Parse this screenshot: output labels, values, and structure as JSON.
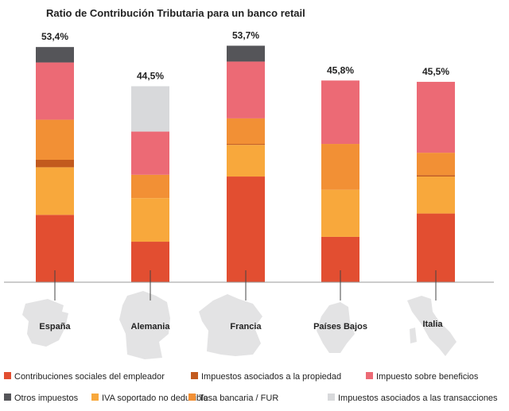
{
  "chart_data": {
    "type": "bar",
    "stacked": true,
    "title": "Ratio de Contribución Tributaria para un banco retail",
    "categories": [
      "España",
      "Alemania",
      "Francia",
      "Países Bajos",
      "Italia"
    ],
    "totals": [
      "53,4%",
      "44,5%",
      "53,7%",
      "45,8%",
      "45,5%"
    ],
    "ylim": [
      0,
      55
    ],
    "grid": false,
    "legend_placement": "bottom",
    "series": [
      {
        "name": "Contribuciones sociales del empleador",
        "color": "#e24e31",
        "values": [
          15.3,
          9.2,
          24.0,
          10.3,
          15.6
        ]
      },
      {
        "name": "IVA soportado no deducible",
        "color": "#f8a83c",
        "values": [
          10.8,
          9.9,
          7.2,
          10.7,
          8.4
        ]
      },
      {
        "name": "Impuestos asociados a la propiedad",
        "color": "#c25a1e",
        "values": [
          1.7,
          0,
          0.2,
          0,
          0.3
        ]
      },
      {
        "name": "Tasa bancaria / FUR",
        "color": "#f29035",
        "values": [
          9.1,
          5.3,
          5.8,
          10.4,
          5.1
        ]
      },
      {
        "name": "Impuesto sobre beneficios",
        "color": "#ec6a75",
        "values": [
          13.0,
          9.8,
          12.9,
          14.4,
          16.1
        ]
      },
      {
        "name": "Otros impuestos",
        "color": "#555559",
        "values": [
          3.5,
          0,
          3.6,
          0,
          0
        ]
      },
      {
        "name": "Impuestos asociados a las transacciones",
        "color": "#d8d9db",
        "values": [
          0,
          10.3,
          0,
          0,
          0
        ]
      }
    ],
    "legend_order": [
      0,
      2,
      4,
      5,
      1,
      3,
      6
    ]
  }
}
